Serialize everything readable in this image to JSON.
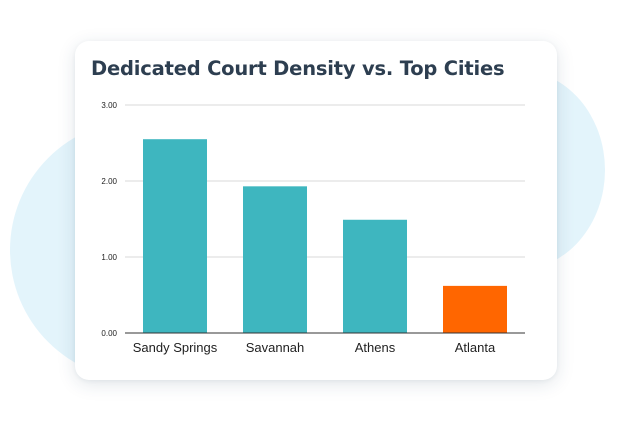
{
  "colors": {
    "background_blob": "#e3f4fb",
    "bar_default": "#3eb6bf",
    "bar_highlight": "#ff6600",
    "title": "#2d3e50",
    "gridline": "#d9d9d9",
    "axis": "#333333"
  },
  "chart_data": {
    "type": "bar",
    "title": "Dedicated Court Density vs. Top Cities",
    "xlabel": "",
    "ylabel": "",
    "categories": [
      "Sandy Springs",
      "Savannah",
      "Athens",
      "Atlanta"
    ],
    "values": [
      2.55,
      1.93,
      1.49,
      0.62
    ],
    "highlight": [
      "Atlanta"
    ],
    "ylim": [
      0,
      3
    ],
    "yticks": [
      "0.00",
      "1.00",
      "2.00",
      "3.00"
    ],
    "grid": true,
    "legend": "none"
  }
}
